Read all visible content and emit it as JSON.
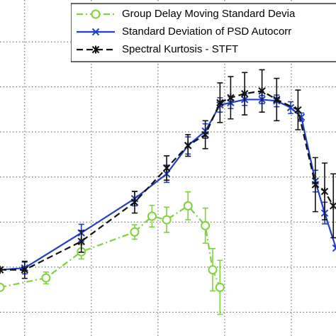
{
  "chart_data": {
    "type": "line",
    "xlim": [
      -0.37,
      4.67
    ],
    "ylim": [
      -0.53,
      6.93
    ],
    "xticks": [
      0,
      1,
      2,
      3,
      4
    ],
    "yticks": [
      0,
      1,
      2,
      3,
      4,
      5,
      6
    ],
    "grid": true,
    "legend": "upper right",
    "series": [
      {
        "name": "Group Delay Moving Standard Devia",
        "color": "#7fd23a",
        "style": "dashdot",
        "marker": "circle",
        "x": [
          -0.37,
          0.32,
          0.85,
          1.65,
          1.91,
          2.13,
          2.45,
          2.71,
          2.82,
          2.93
        ],
        "values": [
          0.55,
          0.76,
          1.34,
          1.78,
          2.13,
          2.05,
          2.36,
          1.92,
          0.94,
          0.55
        ],
        "errors": [
          null,
          0.13,
          0.16,
          0.16,
          0.24,
          0.28,
          0.31,
          0.39,
          0.47,
          0.6
        ]
      },
      {
        "name": "Standard Deviation of PSD Autocorr",
        "color": "#1f3fc4",
        "style": "solid",
        "marker": "x",
        "x": [
          -0.37,
          0,
          0.85,
          1.65,
          2.13,
          2.45,
          2.71,
          2.93,
          3.09,
          3.3,
          3.56,
          3.78,
          3.99,
          4.15,
          4.36,
          4.5,
          4.67
        ],
        "values": [
          0.94,
          0.98,
          1.76,
          2.52,
          3.07,
          3.7,
          4.02,
          4.6,
          4.65,
          4.72,
          4.72,
          4.69,
          4.54,
          4.33,
          2.91,
          2.2,
          1.42
        ],
        "errors": [
          null,
          0.13,
          0.19,
          0.16,
          0.19,
          0.19,
          0.16,
          0.16,
          0.13,
          0.13,
          0.09,
          0.13,
          0.13,
          0.09,
          0.24,
          0.24,
          null
        ]
      },
      {
        "name": "Spectral Kurtosis - STFT",
        "color": "#111111",
        "style": "dashed",
        "marker": "star",
        "x": [
          -0.37,
          0,
          0.85,
          1.65,
          2.13,
          2.45,
          2.71,
          2.93,
          3.09,
          3.3,
          3.56,
          3.78,
          4.1,
          4.36,
          4.5,
          4.63
        ],
        "values": [
          0.94,
          0.94,
          1.57,
          2.44,
          3.2,
          3.7,
          3.94,
          4.65,
          4.76,
          4.85,
          4.91,
          4.72,
          4.49,
          2.83,
          2.68,
          2.36
        ],
        "errors": [
          null,
          0.19,
          0.24,
          0.24,
          0.27,
          0.24,
          0.31,
          0.44,
          0.47,
          0.47,
          0.47,
          0.47,
          0.44,
          0.6,
          0.63,
          0.71
        ]
      }
    ]
  }
}
